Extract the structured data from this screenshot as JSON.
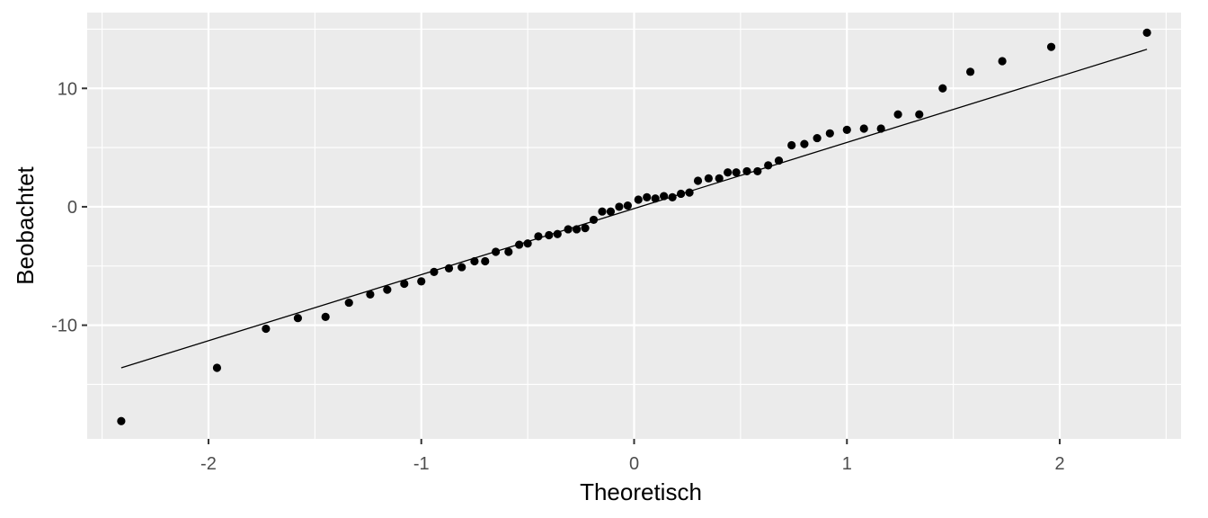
{
  "chart_data": {
    "type": "scatter",
    "title": "",
    "xlabel": "Theoretisch",
    "ylabel": "Beobachtet",
    "xlim": [
      -2.57,
      2.57
    ],
    "ylim": [
      -19.6,
      16.4
    ],
    "x_ticks": [
      -2,
      -1,
      0,
      1,
      2
    ],
    "x_tick_labels": [
      "-2",
      "-1",
      "0",
      "1",
      "2"
    ],
    "y_ticks": [
      -10,
      0,
      10
    ],
    "y_tick_labels": [
      "-10",
      "0",
      "10"
    ],
    "grid": true,
    "legend": "none",
    "colors": {
      "panel": "#ebebeb",
      "grid": "#ffffff",
      "point": "#000000",
      "line": "#000000",
      "tick": "#333333"
    },
    "reference_line": {
      "x": [
        -2.41,
        2.41
      ],
      "y": [
        -13.6,
        13.3
      ]
    },
    "points": {
      "x": [
        -2.41,
        -1.96,
        -1.73,
        -1.58,
        -1.45,
        -1.34,
        -1.24,
        -1.16,
        -1.08,
        -1.0,
        -0.94,
        -0.87,
        -0.81,
        -0.75,
        -0.7,
        -0.65,
        -0.59,
        -0.54,
        -0.5,
        -0.45,
        -0.4,
        -0.36,
        -0.31,
        -0.27,
        -0.23,
        -0.19,
        -0.15,
        -0.11,
        -0.07,
        -0.03,
        0.02,
        0.06,
        0.1,
        0.14,
        0.18,
        0.22,
        0.26,
        0.3,
        0.35,
        0.4,
        0.44,
        0.48,
        0.53,
        0.58,
        0.63,
        0.68,
        0.74,
        0.8,
        0.86,
        0.92,
        1.0,
        1.08,
        1.16,
        1.24,
        1.34,
        1.45,
        1.58,
        1.73,
        1.96,
        2.41
      ],
      "y": [
        -18.1,
        -13.6,
        -10.3,
        -9.4,
        -9.3,
        -8.1,
        -7.4,
        -7.0,
        -6.5,
        -6.3,
        -5.5,
        -5.2,
        -5.1,
        -4.6,
        -4.6,
        -3.8,
        -3.8,
        -3.2,
        -3.1,
        -2.5,
        -2.4,
        -2.3,
        -1.9,
        -1.9,
        -1.8,
        -1.1,
        -0.4,
        -0.4,
        0.0,
        0.1,
        0.6,
        0.8,
        0.7,
        0.9,
        0.8,
        1.1,
        1.2,
        2.2,
        2.4,
        2.4,
        2.9,
        2.9,
        3.0,
        3.0,
        3.5,
        3.9,
        5.2,
        5.3,
        5.8,
        6.2,
        6.5,
        6.6,
        6.6,
        7.8,
        7.8,
        10.0,
        11.4,
        12.3,
        13.5,
        14.7
      ]
    }
  }
}
